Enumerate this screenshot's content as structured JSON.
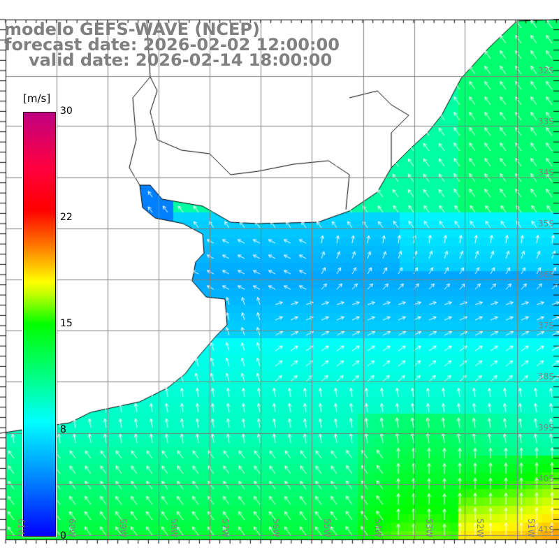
{
  "title": {
    "model": "modelo GEFS-WAVE (NCEP)",
    "forecast": "forecast date: 2026-02-02 12:00:00",
    "valid": "valid date: 2026-02-14 18:00:00"
  },
  "colorbar": {
    "unit": "[m/s]",
    "labels": [
      "30",
      "22",
      "15",
      "8",
      "0"
    ],
    "range": [
      0,
      30
    ]
  },
  "axes": {
    "lon_labels": [
      "61W",
      "60W",
      "59W",
      "58W",
      "57W",
      "56W",
      "55W",
      "54W",
      "53W",
      "52W",
      "51W"
    ],
    "lat_labels": [
      "32S",
      "33S",
      "34S",
      "35S",
      "36S",
      "37S",
      "38S",
      "39S",
      "40S",
      "41S"
    ]
  },
  "colors": {
    "label_gray": "#808080",
    "land": "#ffffff",
    "arrows": "#ffffff",
    "grid": "#808080"
  }
}
